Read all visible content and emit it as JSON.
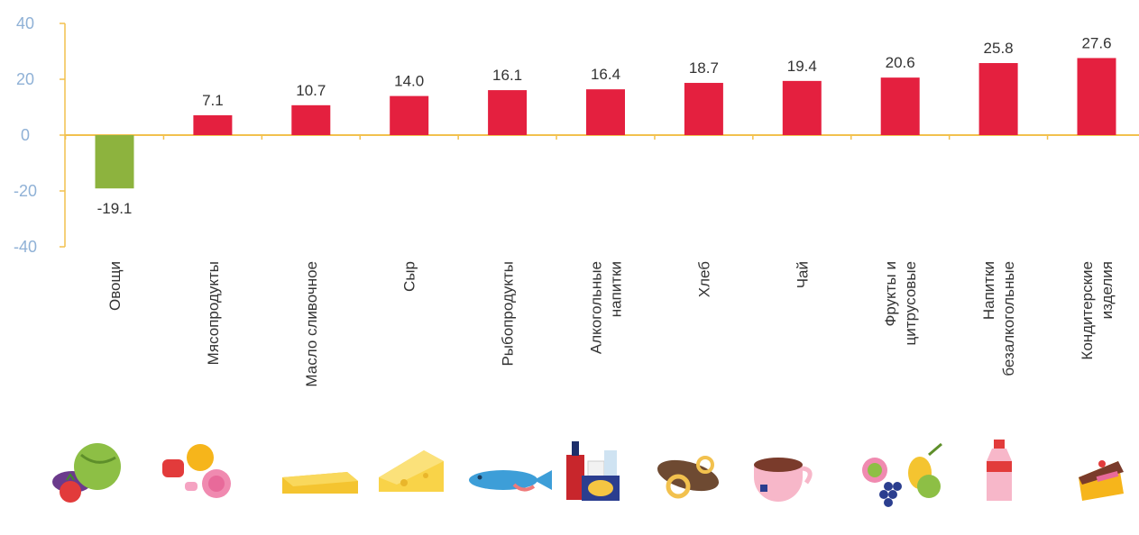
{
  "chart_data": {
    "type": "bar",
    "categories": [
      "Овощи",
      "Мясопродукты",
      "Масло сливочное",
      "Сыр",
      "Рыбопродукты",
      "Алкогольные напитки",
      "Хлеб",
      "Чай",
      "Фрукты и цитрусовые",
      "Напитки безалкогольные",
      "Кондитерские изделия"
    ],
    "category_lines": [
      [
        "Овощи"
      ],
      [
        "Мясопродукты"
      ],
      [
        "Масло сливочное"
      ],
      [
        "Сыр"
      ],
      [
        "Рыбопродукты"
      ],
      [
        "Алкогольные",
        "напитки"
      ],
      [
        "Хлеб"
      ],
      [
        "Чай"
      ],
      [
        "Фрукты и",
        "цитрусовые"
      ],
      [
        "Напитки",
        "безалкогольные"
      ],
      [
        "Кондитерские",
        "изделия"
      ]
    ],
    "values": [
      -19.1,
      7.1,
      10.7,
      14.0,
      16.1,
      16.4,
      18.7,
      19.4,
      20.6,
      25.8,
      27.6
    ],
    "value_labels": [
      "-19.1",
      "7.1",
      "10.7",
      "14.0",
      "16.1",
      "16.4",
      "18.7",
      "19.4",
      "20.6",
      "25.8",
      "27.6"
    ],
    "ylim": [
      -40,
      40
    ],
    "yticks": [
      40,
      20,
      0,
      -20,
      -40
    ],
    "title": "",
    "xlabel": "",
    "ylabel": "",
    "grid": false,
    "colors": {
      "positive": "#e4203f",
      "negative": "#8db33e",
      "axis": "#f2c14e",
      "tick_text": "#8fb1d6",
      "label_text": "#333333"
    },
    "icons": [
      "vegetables-icon",
      "meat-icon",
      "butter-icon",
      "cheese-icon",
      "fish-icon",
      "alcohol-bottles-icon",
      "bread-icon",
      "tea-cup-icon",
      "fruits-icon",
      "soft-drink-bottle-icon",
      "cake-icon"
    ]
  }
}
